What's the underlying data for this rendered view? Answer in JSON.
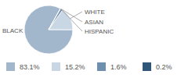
{
  "chart_data": {
    "type": "pie",
    "categories": [
      "BLACK",
      "WHITE",
      "ASIAN",
      "HISPANIC"
    ],
    "values": [
      83.1,
      15.2,
      1.6,
      0.2
    ],
    "value_labels": [
      "83.1%",
      "15.2%",
      "1.6%",
      "0.2%"
    ],
    "colors": [
      "#a3b7cc",
      "#c9d6e3",
      "#6f8fae",
      "#2f5579"
    ],
    "legend": "bottom"
  }
}
